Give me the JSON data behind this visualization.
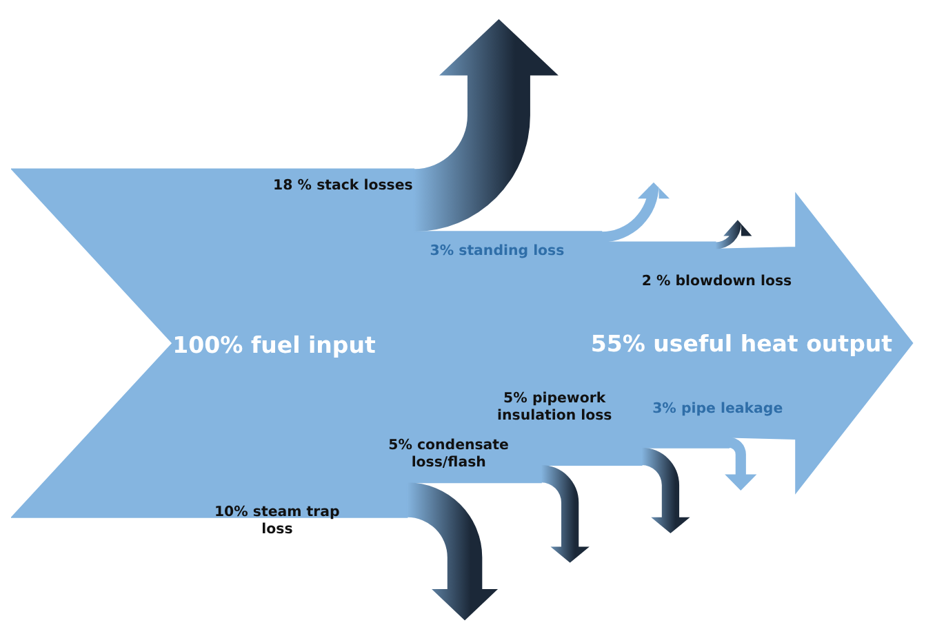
{
  "chart_data": {
    "type": "other",
    "categories": [
      "fuel input",
      "stack losses",
      "standing loss",
      "blowdown loss",
      "useful heat output",
      "pipework insulation loss",
      "pipe leakage",
      "condensate loss/flash",
      "steam trap loss"
    ],
    "values": [
      100,
      18,
      3,
      2,
      55,
      5,
      3,
      5,
      10
    ],
    "value_labels": [
      "100%",
      "18 %",
      "3%",
      "2 %",
      "55%",
      "5%",
      "3%",
      "5%",
      "10%"
    ],
    "colors": [
      "#85b5e0",
      "#1b2838",
      "#85b5e0",
      "#1b2838",
      "#85b5e0",
      "#1b2838",
      "#85b5e0",
      "#1b2838",
      "#1b2838"
    ]
  }
}
